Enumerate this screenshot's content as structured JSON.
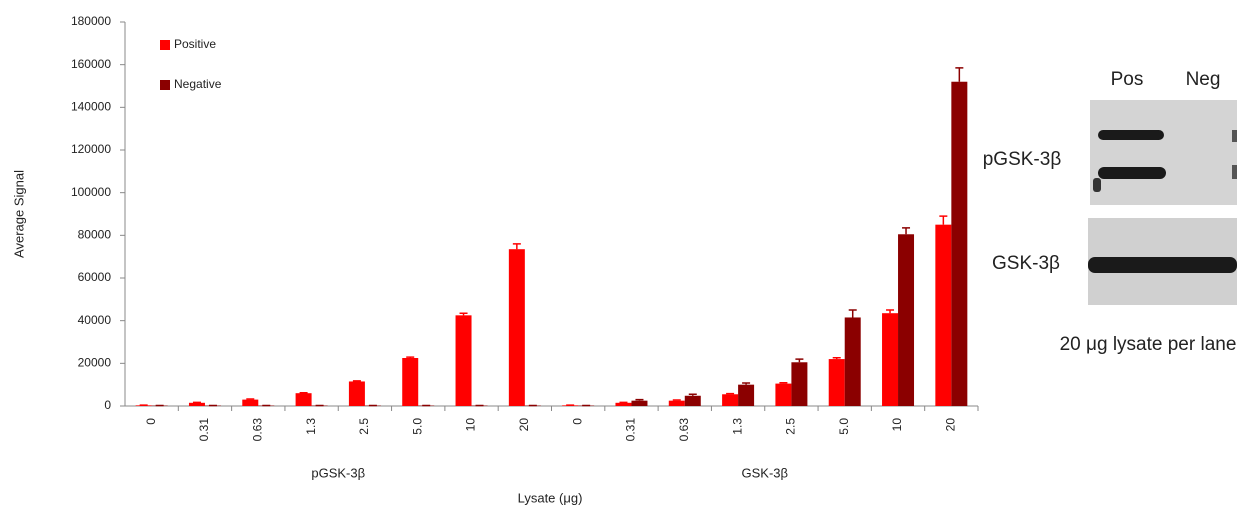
{
  "chart_data": {
    "type": "bar",
    "y_label": "Average Signal",
    "x_label": "Lysate (μg)",
    "group_labels": [
      "pGSK-3β",
      "GSK-3β"
    ],
    "categories": [
      "0",
      "0.31",
      "0.63",
      "1.3",
      "2.5",
      "5.0",
      "10",
      "20",
      "0",
      "0.31",
      "0.63",
      "1.3",
      "2.5",
      "5.0",
      "10",
      "20"
    ],
    "series": [
      {
        "name": "Positive",
        "color": "#ff0000",
        "values": [
          300,
          1500,
          3000,
          6000,
          11500,
          22500,
          42500,
          73500,
          300,
          1500,
          2500,
          5500,
          10500,
          22000,
          43500,
          85000
        ],
        "errors": [
          100,
          200,
          300,
          200,
          300,
          400,
          1000,
          2500,
          100,
          200,
          300,
          300,
          400,
          600,
          1500,
          4000
        ]
      },
      {
        "name": "Negative",
        "color": "#8b0000",
        "values": [
          200,
          200,
          200,
          200,
          200,
          200,
          200,
          200,
          200,
          2500,
          4800,
          10000,
          20500,
          41500,
          80500,
          152000
        ],
        "errors": [
          50,
          50,
          50,
          50,
          50,
          50,
          50,
          50,
          50,
          500,
          700,
          800,
          1500,
          3500,
          3000,
          6500
        ]
      }
    ],
    "ylim": [
      0,
      180000
    ],
    "yticks": [
      0,
      20000,
      40000,
      60000,
      80000,
      100000,
      120000,
      140000,
      160000,
      180000
    ],
    "legend": "top-left"
  },
  "blot": {
    "lanes": [
      "Pos",
      "Neg"
    ],
    "rows": [
      "pGSK-3β",
      "GSK-3β"
    ],
    "caption": "20 μg lysate per lane"
  }
}
